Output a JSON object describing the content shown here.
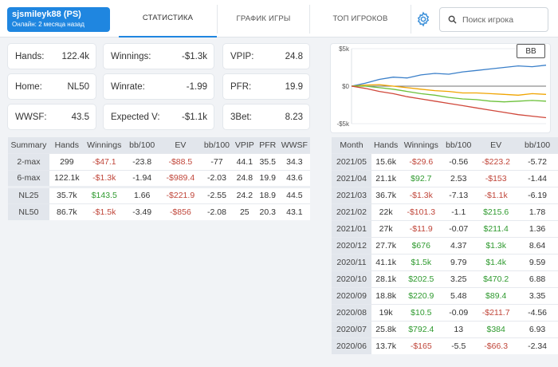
{
  "header": {
    "player_name": "sjsmileyk88 (PS)",
    "player_status": "Онлайн: 2 месяца назад",
    "tabs": [
      {
        "label": "СТАТИСТИКА",
        "active": true
      },
      {
        "label": "ГРАФИК ИГРЫ",
        "active": false
      },
      {
        "label": "ТОП ИГРОКОВ",
        "active": false
      }
    ],
    "settings_icon": "gear-icon",
    "search_icon": "search-icon",
    "search_placeholder": "Поиск игрока",
    "accent_color": "#1f86e0"
  },
  "stats": {
    "hands": {
      "label": "Hands:",
      "value": "122.4k"
    },
    "winnings": {
      "label": "Winnings:",
      "value": "-$1.3k"
    },
    "vpip": {
      "label": "VPIP:",
      "value": "24.8"
    },
    "home": {
      "label": "Home:",
      "value": "NL50"
    },
    "winrate": {
      "label": "Winrate:",
      "value": "-1.99"
    },
    "pfr": {
      "label": "PFR:",
      "value": "19.9"
    },
    "wwsf": {
      "label": "WWSF:",
      "value": "43.5"
    },
    "expected": {
      "label": "Expected V:",
      "value": "-$1.1k"
    },
    "threebet": {
      "label": "3Bet:",
      "value": "8.23"
    }
  },
  "summary_table": {
    "headers": [
      "Summary",
      "Hands",
      "Winnings",
      "bb/100",
      "EV",
      "bb/100",
      "VPIP",
      "PFR",
      "WWSF"
    ],
    "rows": [
      [
        "2-max",
        "299",
        "-$47.1",
        "-23.8",
        "-$88.5",
        "-77",
        "44.1",
        "35.5",
        "34.3"
      ],
      [
        "6-max",
        "122.1k",
        "-$1.3k",
        "-1.94",
        "-$989.4",
        "-2.03",
        "24.8",
        "19.9",
        "43.6"
      ],
      [
        "NL25",
        "35.7k",
        "$143.5",
        "1.66",
        "-$221.9",
        "-2.55",
        "24.2",
        "18.9",
        "44.5"
      ],
      [
        "NL50",
        "86.7k",
        "-$1.5k",
        "-3.49",
        "-$856",
        "-2.08",
        "25",
        "20.3",
        "43.1"
      ]
    ]
  },
  "chart": {
    "button_label": "BB",
    "y_ticks": [
      "$5k",
      "$0",
      "-$5k"
    ],
    "series_colors": [
      "#3a7fc9",
      "#f0a400",
      "#6cc13a",
      "#d0483b"
    ]
  },
  "chart_data": {
    "type": "line",
    "ylim": [
      -5000,
      5000
    ],
    "y_ticks": [
      "$5k",
      "$0",
      "-$5k"
    ],
    "series": [
      {
        "color": "#3a7fc9",
        "values": [
          0,
          400,
          900,
          1200,
          1100,
          1500,
          1700,
          1600,
          1900,
          2100,
          2300,
          2500,
          2700,
          2600,
          2800
        ]
      },
      {
        "color": "#f0a400",
        "values": [
          0,
          150,
          200,
          0,
          -200,
          -400,
          -600,
          -700,
          -900,
          -900,
          -1000,
          -1100,
          -1200,
          -1000,
          -1100
        ]
      },
      {
        "color": "#6cc13a",
        "values": [
          0,
          0,
          -200,
          -400,
          -700,
          -1000,
          -1200,
          -1500,
          -1700,
          -1800,
          -2000,
          -2100,
          -2000,
          -1900,
          -2000
        ]
      },
      {
        "color": "#d0483b",
        "values": [
          0,
          -300,
          -700,
          -1000,
          -1400,
          -1700,
          -2000,
          -2300,
          -2600,
          -2900,
          -3200,
          -3500,
          -3800,
          -4000,
          -4200
        ]
      }
    ]
  },
  "month_table": {
    "headers": [
      "Month",
      "Hands",
      "Winnings",
      "bb/100",
      "EV",
      "bb/100"
    ],
    "rows": [
      [
        "2021/05",
        "15.6k",
        "-$29.6",
        "-0.56",
        "-$223.2",
        "-5.72"
      ],
      [
        "2021/04",
        "21.1k",
        "$92.7",
        "2.53",
        "-$153",
        "-1.44"
      ],
      [
        "2021/03",
        "36.7k",
        "-$1.3k",
        "-7.13",
        "-$1.1k",
        "-6.19"
      ],
      [
        "2021/02",
        "22k",
        "-$101.3",
        "-1.1",
        "$215.6",
        "1.78"
      ],
      [
        "2021/01",
        "27k",
        "-$11.9",
        "-0.07",
        "$211.4",
        "1.36"
      ],
      [
        "2020/12",
        "27.7k",
        "$676",
        "4.37",
        "$1.3k",
        "8.64"
      ],
      [
        "2020/11",
        "41.1k",
        "$1.5k",
        "9.79",
        "$1.4k",
        "9.59"
      ],
      [
        "2020/10",
        "28.1k",
        "$202.5",
        "3.25",
        "$470.2",
        "6.88"
      ],
      [
        "2020/09",
        "18.8k",
        "$220.9",
        "5.48",
        "$89.4",
        "3.35"
      ],
      [
        "2020/08",
        "19k",
        "$10.5",
        "-0.09",
        "-$211.7",
        "-4.56"
      ],
      [
        "2020/07",
        "25.8k",
        "$792.4",
        "13",
        "$384",
        "6.93"
      ],
      [
        "2020/06",
        "13.7k",
        "-$165",
        "-5.5",
        "-$66.3",
        "-2.34"
      ]
    ]
  }
}
